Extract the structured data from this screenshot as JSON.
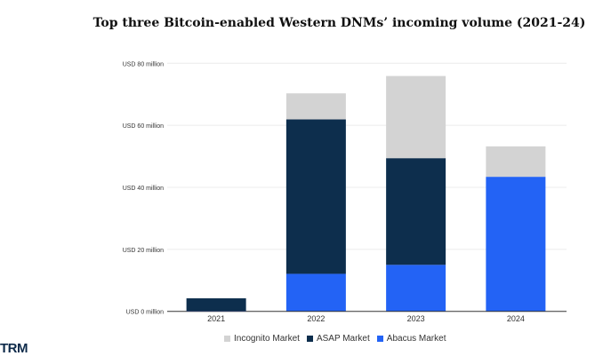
{
  "chart_data": {
    "type": "bar",
    "stacked": true,
    "title": "Top three Bitcoin-enabled Western DNMs’ incoming volume (2021-24)",
    "xlabel": "",
    "ylabel": "",
    "categories": [
      "2021",
      "2022",
      "2023",
      "2024"
    ],
    "ylim": [
      0,
      80
    ],
    "yticks": [
      0,
      20,
      40,
      60,
      80
    ],
    "ytick_labels": [
      "USD 0 million",
      "USD 20 million",
      "USD 40 million",
      "USD 60 million",
      "USD 80 million"
    ],
    "grid": true,
    "legend_position": "bottom",
    "series": [
      {
        "name": "Abacus Market",
        "color": "#2363f5",
        "values": [
          0.2,
          12.1,
          15.0,
          43.4
        ]
      },
      {
        "name": "ASAP Market",
        "color": "#0d2e4d",
        "values": [
          4.0,
          49.8,
          34.4,
          0
        ]
      },
      {
        "name": "Incognito Market",
        "color": "#d3d3d3",
        "values": [
          0,
          8.4,
          26.5,
          9.8
        ]
      }
    ],
    "legend_order": [
      "Incognito Market",
      "ASAP Market",
      "Abacus Market"
    ]
  },
  "logo": "TRM"
}
